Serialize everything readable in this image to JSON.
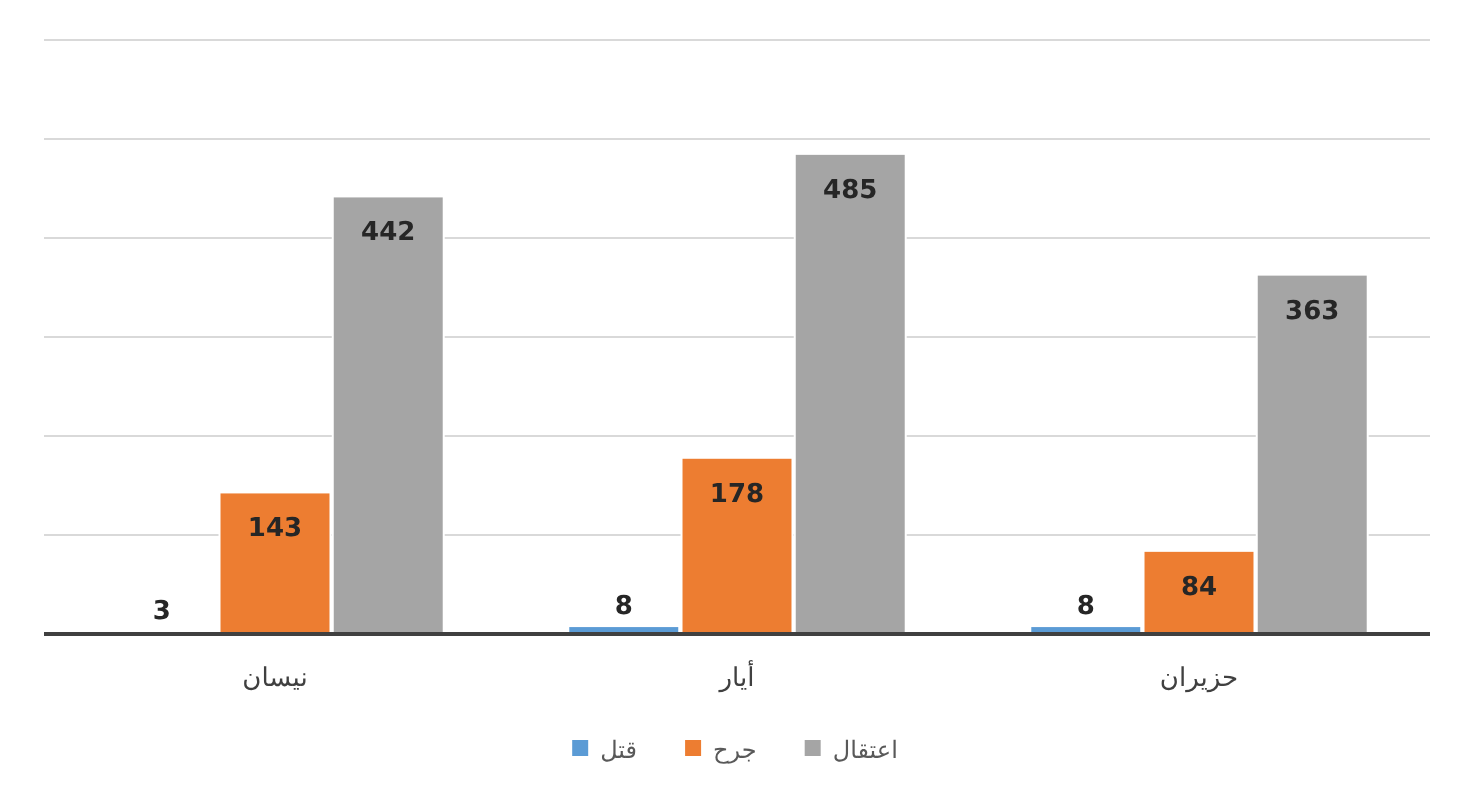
{
  "chart_data": {
    "type": "bar",
    "categories": [
      "نيسان",
      "أيار",
      "حزيران"
    ],
    "series": [
      {
        "name": "قتل",
        "color": "#5b9bd5",
        "values": [
          3,
          8,
          8
        ]
      },
      {
        "name": "جرح",
        "color": "#ed7d31",
        "values": [
          143,
          178,
          84
        ]
      },
      {
        "name": "اعتقال",
        "color": "#a5a5a5",
        "values": [
          442,
          485,
          363
        ]
      }
    ],
    "ylim": [
      0,
      600
    ],
    "yticks": [
      {
        "value": 0,
        "label": null
      },
      {
        "value": 100,
        "label": null
      },
      {
        "value": 200,
        "label": null
      },
      {
        "value": 300,
        "label": null
      },
      {
        "value": 400,
        "label": null
      },
      {
        "value": 500,
        "label": null
      },
      {
        "value": 600,
        "label": null
      }
    ],
    "tick_labels": "x",
    "grid": "y",
    "data_labels": true,
    "legend": "bottom"
  }
}
